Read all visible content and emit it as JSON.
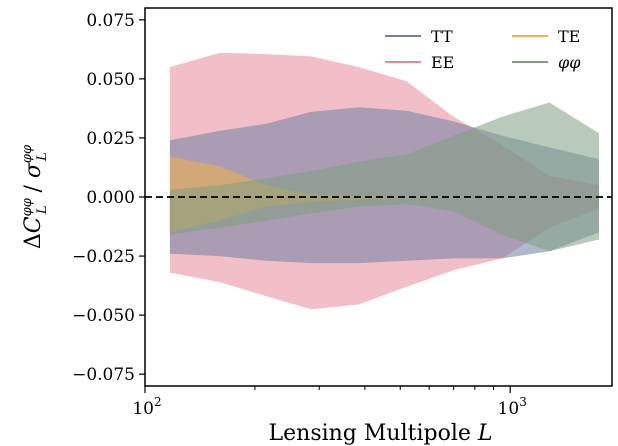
{
  "chart_data": {
    "type": "area",
    "title": "",
    "xlabel": "Lensing Multipole L",
    "ylabel": "ΔC_L^{φφ} / σ_L^{φφ}",
    "xscale": "log",
    "xlim": [
      100,
      1900
    ],
    "ylim": [
      -0.08,
      0.08
    ],
    "x_ticks": [
      {
        "value": 100,
        "base": "10",
        "exp": "2"
      },
      {
        "value": 1000,
        "base": "10",
        "exp": "3"
      }
    ],
    "y_ticks": [
      {
        "value": 0.075,
        "label": "0.075"
      },
      {
        "value": 0.05,
        "label": "0.050"
      },
      {
        "value": 0.025,
        "label": "0.025"
      },
      {
        "value": 0.0,
        "label": "0.000"
      },
      {
        "value": -0.025,
        "label": "−0.025"
      },
      {
        "value": -0.05,
        "label": "−0.050"
      },
      {
        "value": -0.075,
        "label": "−0.075"
      }
    ],
    "zero_line": {
      "value": 0,
      "style": "dashed"
    },
    "legend_position": "top-right",
    "series": [
      {
        "name": "EE",
        "color": "#e8889a",
        "x": [
          117,
          160,
          215,
          285,
          385,
          520,
          700,
          950,
          1280,
          1750
        ],
        "upper": [
          0.055,
          0.061,
          0.0605,
          0.0595,
          0.055,
          0.049,
          0.034,
          0.022,
          0.009,
          0.005
        ],
        "lower": [
          -0.032,
          -0.036,
          -0.042,
          -0.0475,
          -0.0455,
          -0.038,
          -0.031,
          -0.026,
          -0.013,
          -0.005
        ]
      },
      {
        "name": "TT",
        "color": "#6f7fa0",
        "x": [
          117,
          160,
          215,
          285,
          385,
          520,
          700,
          950,
          1280,
          1750
        ],
        "upper": [
          0.024,
          0.028,
          0.031,
          0.036,
          0.038,
          0.0365,
          0.032,
          0.026,
          0.021,
          0.016
        ],
        "lower": [
          -0.024,
          -0.025,
          -0.027,
          -0.028,
          -0.028,
          -0.027,
          -0.026,
          -0.026,
          -0.023,
          -0.015
        ]
      },
      {
        "name": "TE",
        "color": "#f2b24a",
        "x": [
          117,
          160,
          215,
          285,
          385,
          520,
          700,
          950,
          1280,
          1750
        ],
        "upper": [
          0.017,
          0.013,
          0.005,
          0.001,
          0.0005,
          0.0004,
          0.0003,
          0.0003,
          0.0002,
          0.0002
        ],
        "lower": [
          -0.015,
          -0.01,
          -0.004,
          -0.002,
          -0.001,
          -0.0005,
          -0.0004,
          -0.0003,
          -0.0002,
          -0.0002
        ]
      },
      {
        "name": "φφ",
        "color": "#7f9e84",
        "x": [
          117,
          160,
          215,
          285,
          385,
          520,
          700,
          950,
          1280,
          1750
        ],
        "upper": [
          0.003,
          0.005,
          0.008,
          0.011,
          0.015,
          0.018,
          0.026,
          0.034,
          0.04,
          0.027
        ],
        "lower": [
          -0.016,
          -0.013,
          -0.01,
          -0.007,
          -0.004,
          -0.003,
          -0.006,
          -0.016,
          -0.023,
          -0.018
        ]
      }
    ],
    "legend_order": [
      "TT",
      "EE",
      "TE",
      "φφ"
    ]
  }
}
